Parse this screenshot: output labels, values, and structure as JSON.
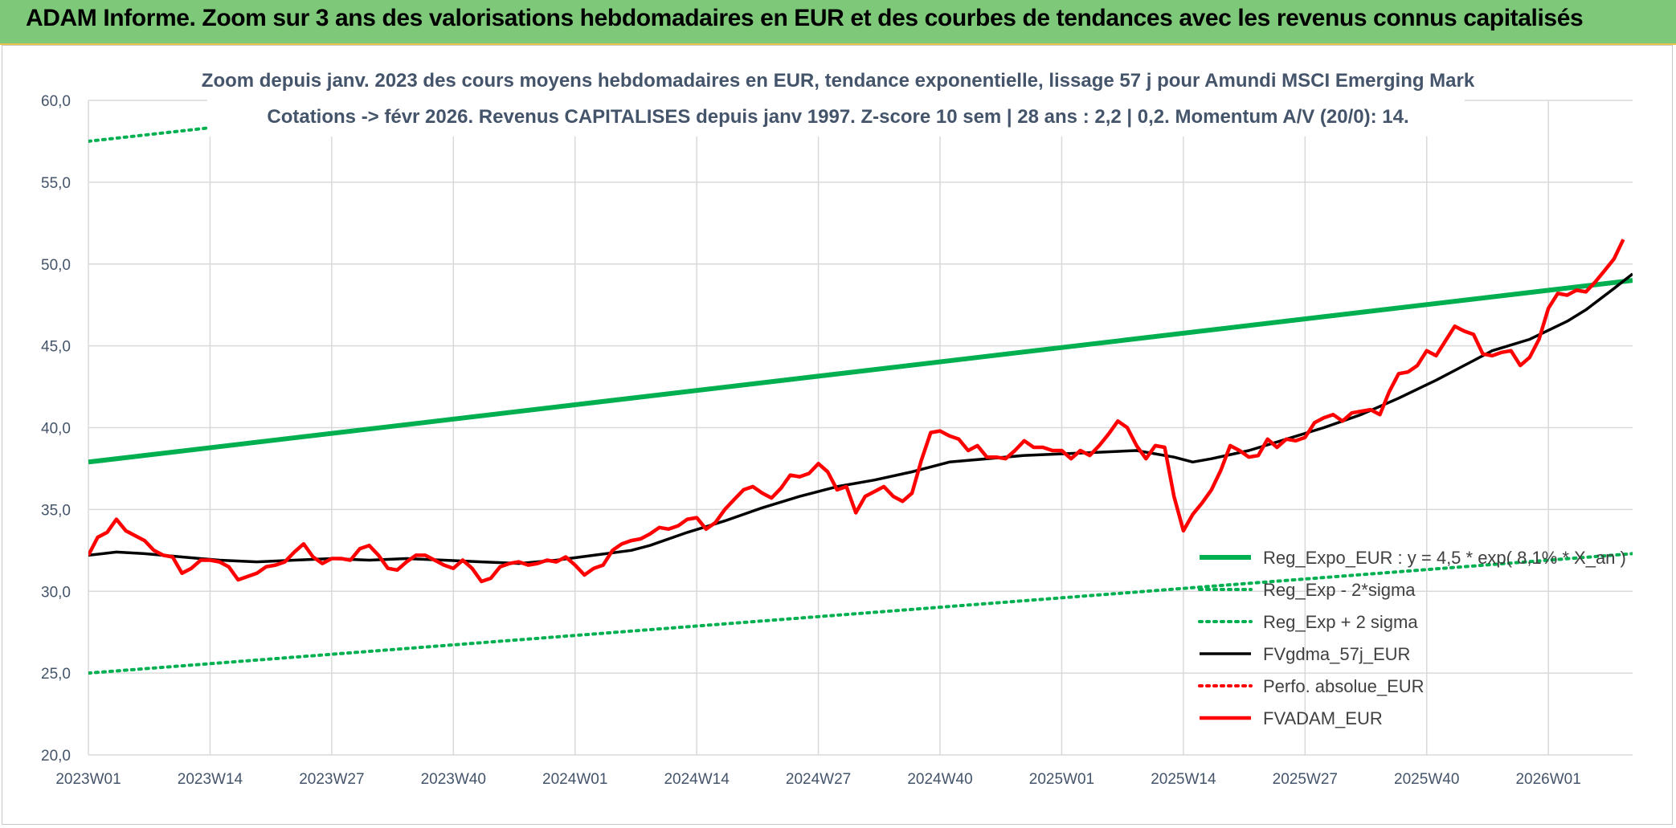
{
  "banner": {
    "title": "ADAM Informe. Zoom sur 3 ans des valorisations hebdomadaires en EUR et des courbes de tendances avec les revenus connus capitalisés"
  },
  "colors": {
    "banner_bg": "#7ec87a",
    "trend": "#00b050",
    "smoothed": "#000000",
    "price": "#ff0000",
    "perf": "#ff0000",
    "grid": "#d9d9d9",
    "text": "#44546a"
  },
  "chart_data": {
    "type": "line",
    "title": "Zoom depuis janv. 2023 des cours moyens hebdomadaires en EUR, tendance exponentielle, lissage 57 j pour Amundi MSCI Emerging Mark",
    "subtitle": "Cotations -> févr 2026. Revenus CAPITALISES depuis janv 1997. Z-score 10 sem | 28 ans : 2,2 | 0,2. Momentum A/V (20/0): 14.",
    "xlabel": "",
    "ylabel": "",
    "ylim": [
      20,
      60
    ],
    "y_ticks": [
      "20,0",
      "25,0",
      "30,0",
      "35,0",
      "40,0",
      "45,0",
      "50,0",
      "55,0",
      "60,0"
    ],
    "x_ticks": [
      "2023W01",
      "2023W14",
      "2023W27",
      "2023W40",
      "2024W01",
      "2024W14",
      "2024W27",
      "2024W40",
      "2025W01",
      "2025W14",
      "2025W27",
      "2025W40",
      "2026W01"
    ],
    "x_range_weeks": [
      0,
      165
    ],
    "grid": true,
    "legend_position": "bottom-right",
    "series": [
      {
        "name": "Reg_Expo_EUR : y = 4,5 * exp( 8,1% * X_an )",
        "style": "solid-thick",
        "color": "#00b050",
        "points": [
          [
            0,
            37.9
          ],
          [
            165,
            49.0
          ]
        ]
      },
      {
        "name": "Reg_Exp - 2*sigma",
        "style": "dotted",
        "color": "#00b050",
        "points": [
          [
            0,
            25.0
          ],
          [
            165,
            32.3
          ]
        ]
      },
      {
        "name": "Reg_Exp + 2 sigma",
        "style": "dotted",
        "color": "#00b050",
        "points": [
          [
            0,
            57.5
          ],
          [
            165,
            68.0
          ]
        ]
      },
      {
        "name": "FVgdma_57j_EUR",
        "style": "solid",
        "color": "#000000",
        "points": [
          [
            0,
            32.2
          ],
          [
            3,
            32.4
          ],
          [
            6,
            32.3
          ],
          [
            10,
            32.1
          ],
          [
            14,
            31.9
          ],
          [
            18,
            31.8
          ],
          [
            22,
            31.9
          ],
          [
            26,
            32.0
          ],
          [
            30,
            31.9
          ],
          [
            34,
            32.0
          ],
          [
            38,
            31.9
          ],
          [
            42,
            31.8
          ],
          [
            46,
            31.7
          ],
          [
            50,
            31.9
          ],
          [
            54,
            32.2
          ],
          [
            58,
            32.5
          ],
          [
            60,
            32.8
          ],
          [
            64,
            33.6
          ],
          [
            68,
            34.3
          ],
          [
            72,
            35.1
          ],
          [
            76,
            35.8
          ],
          [
            80,
            36.4
          ],
          [
            84,
            36.8
          ],
          [
            88,
            37.3
          ],
          [
            92,
            37.9
          ],
          [
            96,
            38.1
          ],
          [
            100,
            38.3
          ],
          [
            104,
            38.4
          ],
          [
            108,
            38.5
          ],
          [
            112,
            38.6
          ],
          [
            116,
            38.2
          ],
          [
            118,
            37.9
          ],
          [
            120,
            38.1
          ],
          [
            124,
            38.6
          ],
          [
            128,
            39.3
          ],
          [
            132,
            40.0
          ],
          [
            136,
            40.8
          ],
          [
            140,
            41.8
          ],
          [
            144,
            42.9
          ],
          [
            148,
            44.1
          ],
          [
            150,
            44.7
          ],
          [
            154,
            45.4
          ],
          [
            158,
            46.5
          ],
          [
            160,
            47.2
          ],
          [
            163,
            48.5
          ],
          [
            165,
            49.4
          ]
        ]
      },
      {
        "name": "Perfo. absolue_EUR",
        "style": "dotted",
        "color": "#ff0000",
        "points": []
      },
      {
        "name": "FVADAM_EUR",
        "style": "solid-thick",
        "color": "#ff0000",
        "points": [
          [
            0,
            32.2
          ],
          [
            1,
            33.3
          ],
          [
            2,
            33.6
          ],
          [
            3,
            34.4
          ],
          [
            4,
            33.7
          ],
          [
            5,
            33.4
          ],
          [
            6,
            33.1
          ],
          [
            7,
            32.5
          ],
          [
            8,
            32.2
          ],
          [
            9,
            32.1
          ],
          [
            10,
            31.1
          ],
          [
            11,
            31.4
          ],
          [
            12,
            31.9
          ],
          [
            13,
            31.9
          ],
          [
            14,
            31.8
          ],
          [
            15,
            31.5
          ],
          [
            16,
            30.7
          ],
          [
            17,
            30.9
          ],
          [
            18,
            31.1
          ],
          [
            19,
            31.5
          ],
          [
            20,
            31.6
          ],
          [
            21,
            31.8
          ],
          [
            22,
            32.4
          ],
          [
            23,
            32.9
          ],
          [
            24,
            32.1
          ],
          [
            25,
            31.7
          ],
          [
            26,
            32.0
          ],
          [
            27,
            32.0
          ],
          [
            28,
            31.9
          ],
          [
            29,
            32.6
          ],
          [
            30,
            32.8
          ],
          [
            31,
            32.2
          ],
          [
            32,
            31.4
          ],
          [
            33,
            31.3
          ],
          [
            34,
            31.8
          ],
          [
            35,
            32.2
          ],
          [
            36,
            32.2
          ],
          [
            37,
            31.9
          ],
          [
            38,
            31.6
          ],
          [
            39,
            31.4
          ],
          [
            40,
            31.9
          ],
          [
            41,
            31.4
          ],
          [
            42,
            30.6
          ],
          [
            43,
            30.8
          ],
          [
            44,
            31.5
          ],
          [
            45,
            31.7
          ],
          [
            46,
            31.8
          ],
          [
            47,
            31.6
          ],
          [
            48,
            31.7
          ],
          [
            49,
            31.9
          ],
          [
            50,
            31.8
          ],
          [
            51,
            32.1
          ],
          [
            52,
            31.6
          ],
          [
            53,
            31.0
          ],
          [
            54,
            31.4
          ],
          [
            55,
            31.6
          ],
          [
            56,
            32.5
          ],
          [
            57,
            32.9
          ],
          [
            58,
            33.1
          ],
          [
            59,
            33.2
          ],
          [
            60,
            33.5
          ],
          [
            61,
            33.9
          ],
          [
            62,
            33.8
          ],
          [
            63,
            34.0
          ],
          [
            64,
            34.4
          ],
          [
            65,
            34.5
          ],
          [
            66,
            33.8
          ],
          [
            67,
            34.2
          ],
          [
            68,
            35.0
          ],
          [
            69,
            35.6
          ],
          [
            70,
            36.2
          ],
          [
            71,
            36.4
          ],
          [
            72,
            36.0
          ],
          [
            73,
            35.7
          ],
          [
            74,
            36.3
          ],
          [
            75,
            37.1
          ],
          [
            76,
            37.0
          ],
          [
            77,
            37.2
          ],
          [
            78,
            37.8
          ],
          [
            79,
            37.3
          ],
          [
            80,
            36.2
          ],
          [
            81,
            36.4
          ],
          [
            82,
            34.8
          ],
          [
            83,
            35.8
          ],
          [
            84,
            36.1
          ],
          [
            85,
            36.4
          ],
          [
            86,
            35.8
          ],
          [
            87,
            35.5
          ],
          [
            88,
            36.0
          ],
          [
            89,
            38.0
          ],
          [
            90,
            39.7
          ],
          [
            91,
            39.8
          ],
          [
            92,
            39.5
          ],
          [
            93,
            39.3
          ],
          [
            94,
            38.6
          ],
          [
            95,
            38.9
          ],
          [
            96,
            38.2
          ],
          [
            97,
            38.2
          ],
          [
            98,
            38.1
          ],
          [
            99,
            38.6
          ],
          [
            100,
            39.2
          ],
          [
            101,
            38.8
          ],
          [
            102,
            38.8
          ],
          [
            103,
            38.6
          ],
          [
            104,
            38.6
          ],
          [
            105,
            38.1
          ],
          [
            106,
            38.6
          ],
          [
            107,
            38.3
          ],
          [
            108,
            38.9
          ],
          [
            109,
            39.6
          ],
          [
            110,
            40.4
          ],
          [
            111,
            40.0
          ],
          [
            112,
            38.9
          ],
          [
            113,
            38.1
          ],
          [
            114,
            38.9
          ],
          [
            115,
            38.8
          ],
          [
            116,
            35.8
          ],
          [
            117,
            33.7
          ],
          [
            118,
            34.7
          ],
          [
            119,
            35.4
          ],
          [
            120,
            36.2
          ],
          [
            121,
            37.4
          ],
          [
            122,
            38.9
          ],
          [
            123,
            38.6
          ],
          [
            124,
            38.2
          ],
          [
            125,
            38.3
          ],
          [
            126,
            39.3
          ],
          [
            127,
            38.8
          ],
          [
            128,
            39.3
          ],
          [
            129,
            39.2
          ],
          [
            130,
            39.4
          ],
          [
            131,
            40.3
          ],
          [
            132,
            40.6
          ],
          [
            133,
            40.8
          ],
          [
            134,
            40.4
          ],
          [
            135,
            40.9
          ],
          [
            136,
            41.0
          ],
          [
            137,
            41.1
          ],
          [
            138,
            40.8
          ],
          [
            139,
            42.2
          ],
          [
            140,
            43.3
          ],
          [
            141,
            43.4
          ],
          [
            142,
            43.8
          ],
          [
            143,
            44.7
          ],
          [
            144,
            44.4
          ],
          [
            145,
            45.3
          ],
          [
            146,
            46.2
          ],
          [
            147,
            45.9
          ],
          [
            148,
            45.7
          ],
          [
            149,
            44.5
          ],
          [
            150,
            44.4
          ],
          [
            151,
            44.6
          ],
          [
            152,
            44.7
          ],
          [
            153,
            43.8
          ],
          [
            154,
            44.3
          ],
          [
            155,
            45.4
          ],
          [
            156,
            47.3
          ],
          [
            157,
            48.2
          ],
          [
            158,
            48.1
          ],
          [
            159,
            48.4
          ],
          [
            160,
            48.3
          ],
          [
            161,
            48.9
          ],
          [
            162,
            49.6
          ],
          [
            163,
            50.3
          ],
          [
            164,
            51.5
          ]
        ]
      }
    ]
  }
}
